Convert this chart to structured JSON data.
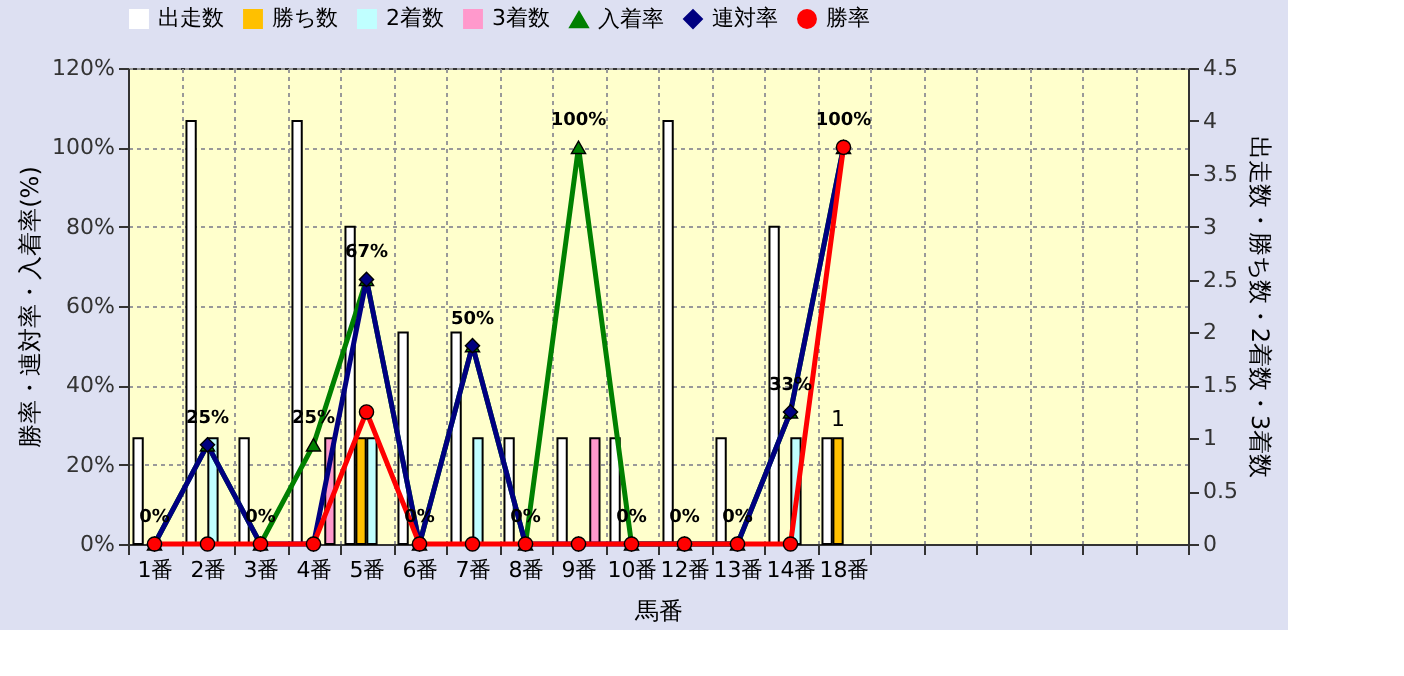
{
  "chart_data": {
    "type": "bar",
    "xlabel": "馬番",
    "ylabel": "勝率・連対率・入着率(%)",
    "y2label": "出走数・勝ち数・2着数・3着数",
    "categories": [
      "1番",
      "2番",
      "3番",
      "4番",
      "5番",
      "6番",
      "7番",
      "8番",
      "9番",
      "10番",
      "12番",
      "13番",
      "14番",
      "18番",
      null,
      null,
      null,
      null,
      null,
      null
    ],
    "series": [
      {
        "name": "出走数",
        "axis": "y2",
        "color": "#ffffff",
        "values": [
          1,
          4,
          1,
          4,
          3,
          2,
          2,
          1,
          1,
          1,
          4,
          1,
          3,
          1,
          null,
          null,
          null,
          null,
          null,
          null
        ]
      },
      {
        "name": "勝ち数",
        "axis": "y2",
        "color": "#ffc000",
        "values": [
          0,
          0,
          0,
          0,
          1,
          0,
          0,
          0,
          0,
          0,
          0,
          0,
          0,
          1,
          null,
          null,
          null,
          null,
          null,
          null
        ],
        "value_labels": [
          null,
          null,
          null,
          null,
          null,
          null,
          null,
          null,
          null,
          null,
          null,
          null,
          null,
          "1",
          null,
          null,
          null,
          null,
          null,
          null
        ]
      },
      {
        "name": "2着数",
        "axis": "y2",
        "color": "#c0ffff",
        "values": [
          0,
          1,
          0,
          0,
          1,
          0,
          1,
          0,
          0,
          0,
          0,
          0,
          1,
          0,
          null,
          null,
          null,
          null,
          null,
          null
        ]
      },
      {
        "name": "3着数",
        "axis": "y2",
        "color": "#ff99cc",
        "values": [
          0,
          0,
          0,
          1,
          0,
          0,
          0,
          0,
          1,
          0,
          0,
          0,
          0,
          0,
          null,
          null,
          null,
          null,
          null,
          null
        ]
      },
      {
        "name": "入着率",
        "type": "line",
        "color": "#008000",
        "marker": "triangle",
        "values": [
          0,
          25,
          0,
          25,
          66.7,
          0,
          50,
          0,
          100,
          0,
          0,
          0,
          33.3,
          100,
          null,
          null,
          null,
          null,
          null,
          null
        ],
        "value_labels": [
          "0%",
          "25%",
          "0%",
          "25%",
          "67%",
          "0%",
          "50%",
          "0%",
          "100%",
          "0%",
          "0%",
          "0%",
          "33%",
          "100%",
          null,
          null,
          null,
          null,
          null,
          null
        ]
      },
      {
        "name": "連対率",
        "type": "line",
        "color": "#000080",
        "marker": "diamond",
        "values": [
          0,
          25,
          0,
          0,
          66.7,
          0,
          50,
          0,
          0,
          0,
          0,
          0,
          33.3,
          100,
          null,
          null,
          null,
          null,
          null,
          null
        ]
      },
      {
        "name": "勝率",
        "type": "line",
        "color": "#ff0000",
        "marker": "circle",
        "values": [
          0,
          0,
          0,
          0,
          33.3,
          0,
          0,
          0,
          0,
          0,
          0,
          0,
          0,
          100,
          null,
          null,
          null,
          null,
          null,
          null
        ]
      }
    ],
    "ylim": [
      0,
      120
    ],
    "yticks": [
      {
        "value": 0,
        "label": "0%"
      },
      {
        "value": 20,
        "label": "20%"
      },
      {
        "value": 40,
        "label": "40%"
      },
      {
        "value": 60,
        "label": "60%"
      },
      {
        "value": 80,
        "label": "80%"
      },
      {
        "value": 100,
        "label": "100%"
      },
      {
        "value": 120,
        "label": "120%"
      }
    ],
    "y2lim": [
      0,
      4.5
    ],
    "y2ticks": [
      0,
      0.5,
      1,
      1.5,
      2,
      2.5,
      3,
      3.5,
      4,
      4.5
    ],
    "grid": true,
    "legend": "top",
    "line_style": "solid"
  }
}
